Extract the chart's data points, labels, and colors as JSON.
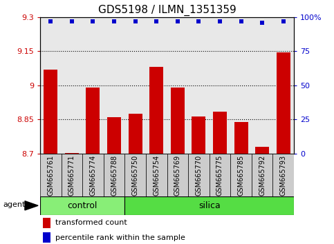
{
  "title": "GDS5198 / ILMN_1351359",
  "samples": [
    "GSM665761",
    "GSM665771",
    "GSM665774",
    "GSM665788",
    "GSM665750",
    "GSM665754",
    "GSM665769",
    "GSM665770",
    "GSM665775",
    "GSM665785",
    "GSM665792",
    "GSM665793"
  ],
  "groups": [
    "control",
    "control",
    "control",
    "control",
    "silica",
    "silica",
    "silica",
    "silica",
    "silica",
    "silica",
    "silica",
    "silica"
  ],
  "bar_values": [
    9.07,
    8.703,
    8.99,
    8.86,
    8.875,
    9.08,
    8.99,
    8.865,
    8.885,
    8.84,
    8.73,
    9.145
  ],
  "percentile_values": [
    97,
    97,
    97,
    97,
    97,
    97,
    97,
    97,
    97,
    97,
    96,
    97
  ],
  "bar_color": "#cc0000",
  "dot_color": "#0000cc",
  "ylim_left": [
    8.7,
    9.3
  ],
  "ylim_right": [
    0,
    100
  ],
  "yticks_left": [
    8.7,
    8.85,
    9.0,
    9.15,
    9.3
  ],
  "ytick_labels_left": [
    "8.7",
    "8.85",
    "9",
    "9.15",
    "9.3"
  ],
  "yticks_right": [
    0,
    25,
    50,
    75,
    100
  ],
  "ytick_labels_right": [
    "0",
    "25",
    "50",
    "75",
    "100%"
  ],
  "grid_values": [
    8.85,
    9.0,
    9.15
  ],
  "control_label": "control",
  "silica_label": "silica",
  "agent_label": "agent",
  "legend_bar_label": "transformed count",
  "legend_dot_label": "percentile rank within the sample",
  "control_count": 4,
  "silica_count": 8,
  "bar_width": 0.65,
  "plot_bg_color": "#e8e8e8",
  "control_bg_color": "#88ee77",
  "silica_bg_color": "#55dd44",
  "label_bg_color": "#cccccc",
  "title_fontsize": 11,
  "tick_fontsize": 8,
  "sample_fontsize": 7,
  "group_fontsize": 9,
  "legend_fontsize": 8
}
